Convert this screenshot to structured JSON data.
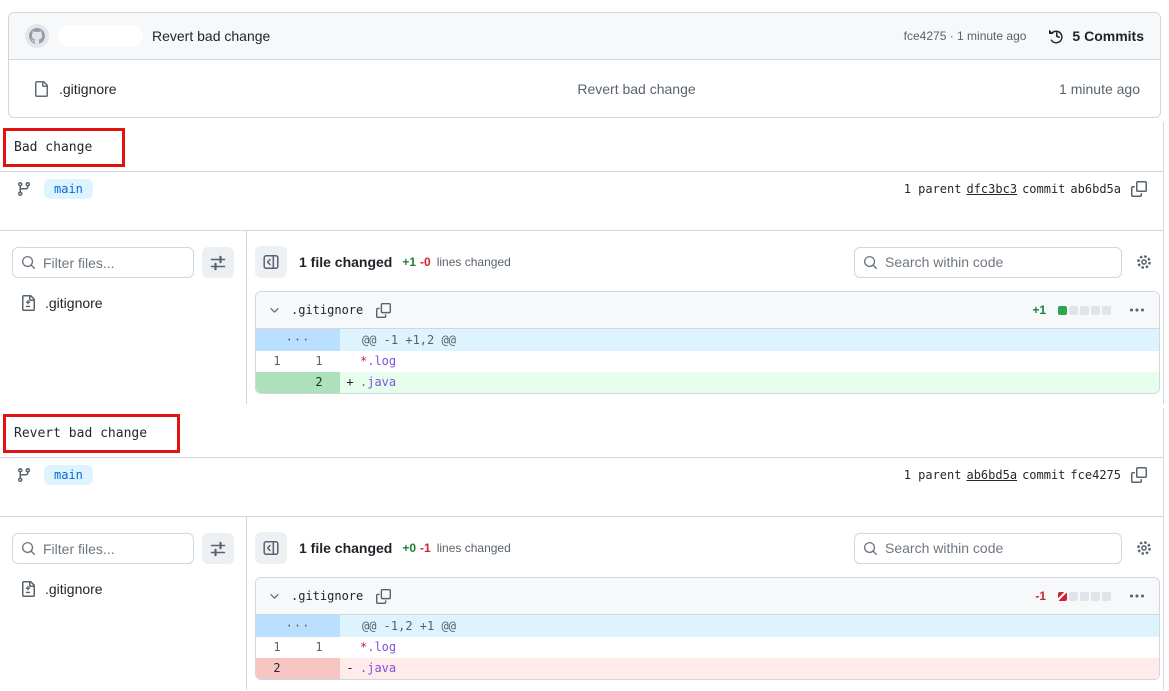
{
  "top_card": {
    "commit_message": "Revert bad change",
    "commit_meta": "fce4275 · 1 minute ago",
    "commits_label": "5 Commits",
    "file_row": {
      "name": ".gitignore",
      "message": "Revert bad change",
      "time": "1 minute ago"
    }
  },
  "colors": {
    "addition_green": "#1a7f37",
    "deletion_red": "#d1242f",
    "branch_badge_blue": "#0969da",
    "hunk_blue_bg": "#ddf4ff",
    "added_bg": "#e6ffec",
    "removed_bg": "#ffebe9",
    "annotation_red": "#e01212"
  },
  "commits": [
    {
      "title": "Bad change",
      "branch": "main",
      "parents": {
        "label": "1 parent",
        "parent_sha": "dfc3bc3",
        "commit_label": "commit",
        "commit_sha": "ab6bd5a"
      },
      "sidebar": {
        "filter_placeholder": "Filter files...",
        "file": ".gitignore"
      },
      "toolbar": {
        "files_changed": "1 file changed",
        "additions": "+1",
        "deletions": "-0",
        "lines_label": "lines changed",
        "search_placeholder": "Search within code"
      },
      "file_diff": {
        "filename": ".gitignore",
        "stat": "+1",
        "stat_squares": [
          "add",
          "empty",
          "empty",
          "empty",
          "empty"
        ],
        "rows": [
          {
            "kind": "hunk",
            "gutter": "···",
            "text": "@@ -1 +1,2 @@"
          },
          {
            "kind": "context",
            "old": "1",
            "new": "1",
            "sign": "",
            "tok_red": "*",
            "tok_purple": ".log"
          },
          {
            "kind": "add",
            "old": "",
            "new": "2",
            "sign": "+",
            "tok_red": "",
            "tok_purple": ".java"
          }
        ]
      }
    },
    {
      "title": "Revert bad change",
      "branch": "main",
      "parents": {
        "label": "1 parent",
        "parent_sha": "ab6bd5a",
        "commit_label": "commit",
        "commit_sha": "fce4275"
      },
      "sidebar": {
        "filter_placeholder": "Filter files...",
        "file": ".gitignore"
      },
      "toolbar": {
        "files_changed": "1 file changed",
        "additions": "+0",
        "deletions": "-1",
        "lines_label": "lines changed",
        "search_placeholder": "Search within code"
      },
      "file_diff": {
        "filename": ".gitignore",
        "stat": "-1",
        "stat_squares": [
          "del",
          "empty",
          "empty",
          "empty",
          "empty"
        ],
        "rows": [
          {
            "kind": "hunk",
            "gutter": "···",
            "text": "@@ -1,2 +1 @@"
          },
          {
            "kind": "context",
            "old": "1",
            "new": "1",
            "sign": "",
            "tok_red": "*",
            "tok_purple": ".log"
          },
          {
            "kind": "del",
            "old": "2",
            "new": "",
            "sign": "-",
            "tok_red": "",
            "tok_purple": ".java"
          }
        ]
      }
    }
  ]
}
